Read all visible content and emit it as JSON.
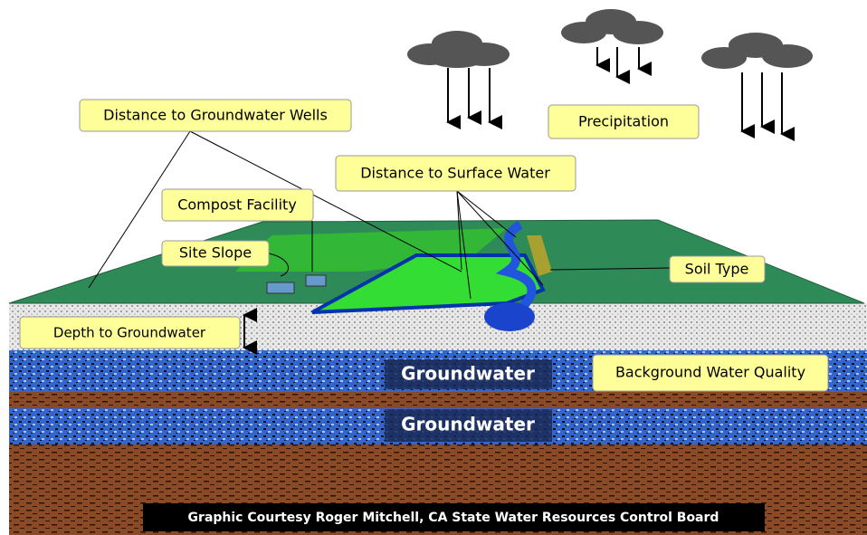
{
  "labels": {
    "wells": "Distance to Groundwater Wells",
    "precipitation": "Precipitation",
    "surface_water": "Distance to Surface Water",
    "compost": "Compost Facility",
    "slope": "Site Slope",
    "soil": "Soil Type",
    "depth": "Depth to Groundwater",
    "background": "Background Water Quality"
  },
  "layers": [
    "Groundwater",
    "Groundwater"
  ],
  "credit": "Graphic Courtesy Roger Mitchell, CA State Water Resources Control Board"
}
